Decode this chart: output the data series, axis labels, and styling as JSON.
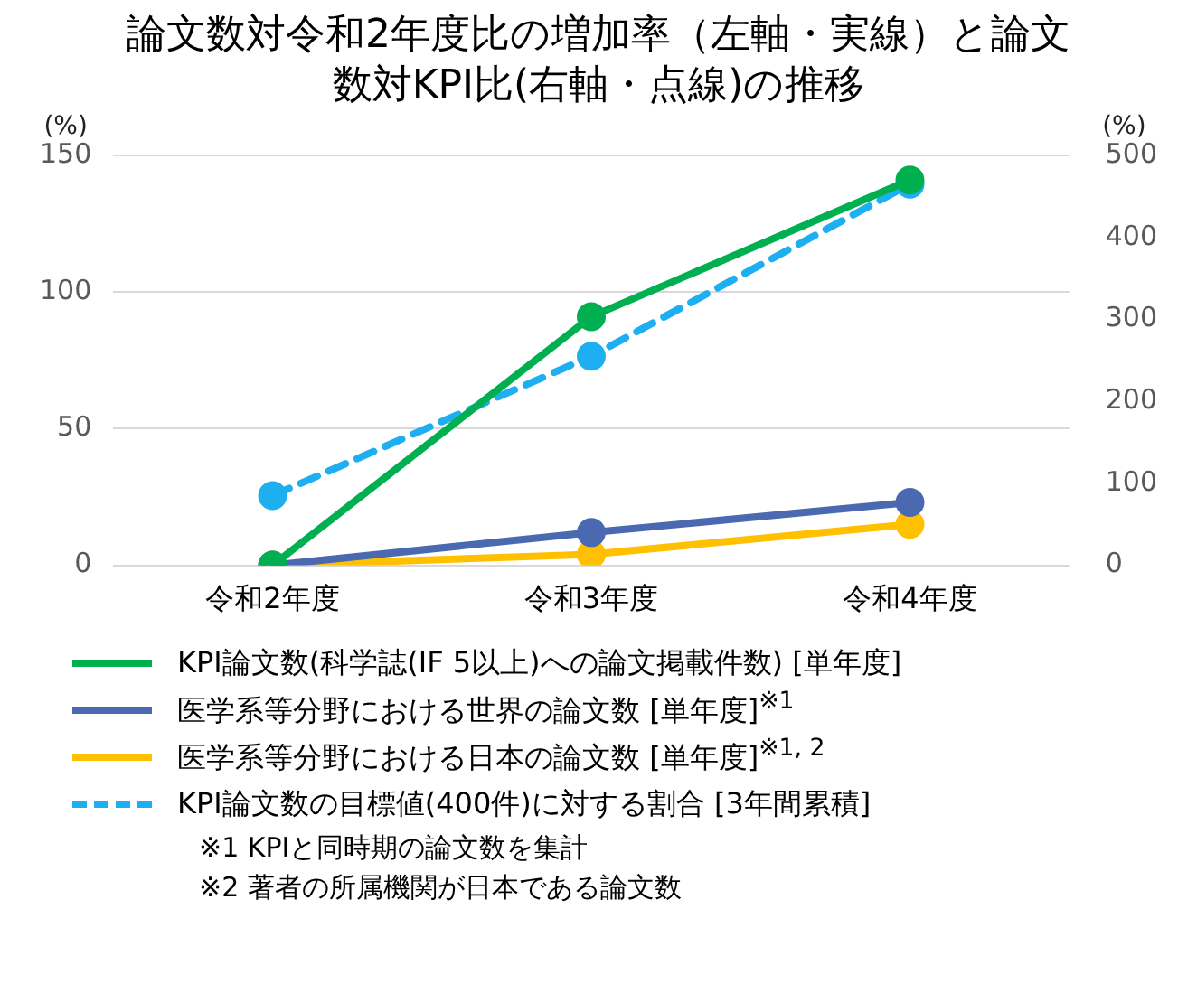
{
  "chart_data": {
    "type": "line",
    "title": "論文数対令和2年度比の増加率（左軸・実線）と論文数対KPI比(右軸・点線)の推移",
    "ylabel": "(%)",
    "y2label": "(%)",
    "categories": [
      "令和2年度",
      "令和3年度",
      "令和4年度"
    ],
    "series": [
      {
        "name": "KPI論文数(科学誌(IF 5以上)への論文掲載件数) [単年度]",
        "color": "#00b050",
        "values": [
          0,
          91,
          141
        ],
        "line_style": "solid"
      },
      {
        "name": "医学系等分野における世界の論文数 [単年度]$^{※1}$",
        "color": "#4a69b0",
        "values": [
          0,
          12,
          23
        ],
        "line_style": "solid"
      },
      {
        "name": "医学系等分野における日本の論文数 [単年度]$^{※1, 2}$",
        "color": "#ffc000",
        "values": [
          0,
          4,
          15
        ],
        "line_style": "solid"
      },
      {
        "name": "KPI論文数の目標値(400件)に対する割合 [3年間累積]",
        "color": "#1eaff0",
        "values": [
          85,
          255,
          465
        ],
        "axis": "y2",
        "line_style": "dashed"
      }
    ],
    "ylim": [
      0,
      150
    ],
    "yticks": [
      0,
      50,
      100,
      150
    ],
    "y2lim": [
      0,
      500
    ],
    "y2ticks": [
      0,
      100,
      200,
      300,
      400,
      500
    ],
    "grid": "y",
    "legend": "bottom",
    "marker": "circle",
    "annotations": [
      "※1 KPIと同時期の論文数を集計",
      "※2 著者の所属機関が日本である論文数"
    ]
  }
}
